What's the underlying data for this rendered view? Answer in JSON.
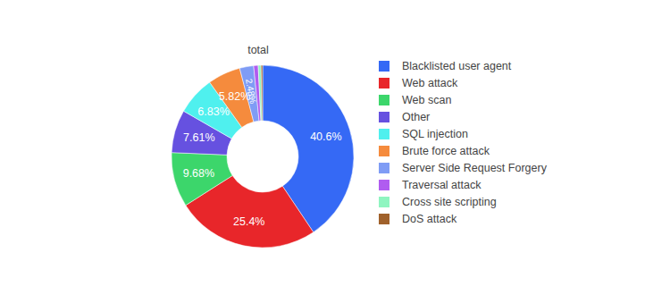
{
  "chart_data": {
    "type": "pie",
    "title": "total",
    "categories": [
      "Blacklisted user agent",
      "Web attack",
      "Web scan",
      "Other",
      "SQL injection",
      "Brute force attack",
      "Server Side Request Forgery",
      "Traversal attack",
      "Cross site scripting",
      "DoS attack"
    ],
    "values": [
      40.6,
      25.4,
      9.68,
      7.61,
      6.83,
      5.82,
      2.48,
      0.8,
      0.5,
      0.28
    ],
    "value_labels": [
      "40.6%",
      "25.4%",
      "9.68%",
      "7.61%",
      "6.83%",
      "5.82%",
      "2.48%",
      null,
      null,
      null
    ],
    "data_labels": true,
    "legend": "right",
    "colors": [
      "#3569f5",
      "#e8262a",
      "#3cd66b",
      "#6651e0",
      "#4ff0ee",
      "#f58b3d",
      "#7f9cf5",
      "#b05cf0",
      "#8ff5c0",
      "#a0612b"
    ]
  }
}
